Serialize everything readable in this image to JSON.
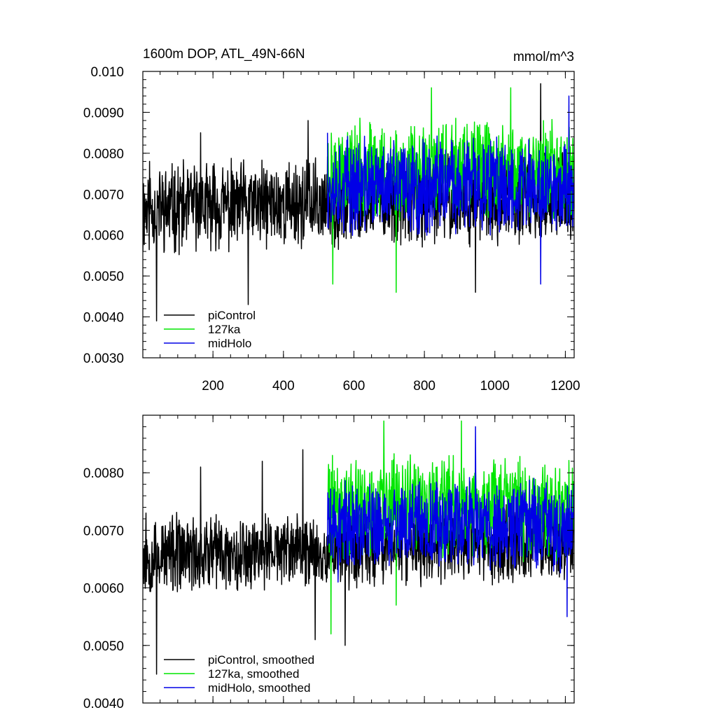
{
  "figure": {
    "title_left": "1600m DOP, ATL_49N-66N",
    "title_right": "mmol/m^3"
  },
  "colors": {
    "piControl": "#000000",
    "127ka": "#00e600",
    "midHolo": "#0000e6"
  },
  "chart_data": [
    {
      "type": "line",
      "title": "1600m DOP, ATL_49N-66N",
      "units": "mmol/m^3",
      "xlim": [
        1,
        1225
      ],
      "ylim": [
        0.003,
        0.01
      ],
      "x_ticks": [
        200,
        400,
        600,
        800,
        1000,
        1200
      ],
      "x_tick_labels": [
        "200",
        "400",
        "600",
        "800",
        "1000",
        "1200"
      ],
      "y_ticks": [
        0.003,
        0.004,
        0.005,
        0.006,
        0.007,
        0.008,
        0.009,
        0.01
      ],
      "y_tick_labels": [
        "0.0030",
        "0.0040",
        "0.0050",
        "0.0060",
        "0.0070",
        "0.0080",
        "0.0090",
        "0.010"
      ],
      "legend": {
        "position": "bottom-left",
        "entries": [
          "piControl",
          "127ka",
          "midHolo"
        ]
      },
      "series": [
        {
          "name": "piControl",
          "color_key": "piControl",
          "x_start": 1,
          "x_end": 1225,
          "mean": 0.0068,
          "amplitude": 0.0011,
          "trend": 0.0003,
          "seed": 11,
          "keypoints": [
            [
              1,
              0.0056
            ],
            [
              20,
              0.0078
            ],
            [
              40,
              0.0039
            ],
            [
              165,
              0.0085
            ],
            [
              300,
              0.0043
            ],
            [
              470,
              0.0088
            ],
            [
              945,
              0.0046
            ],
            [
              1130,
              0.0097
            ]
          ]
        },
        {
          "name": "127ka",
          "color_key": "127ka",
          "x_start": 525,
          "x_end": 1225,
          "mean": 0.0076,
          "amplitude": 0.0012,
          "trend": 0.0,
          "seed": 23,
          "keypoints": [
            [
              540,
              0.0048
            ],
            [
              720,
              0.0046
            ],
            [
              820,
              0.0096
            ],
            [
              1045,
              0.0096
            ]
          ]
        },
        {
          "name": "midHolo",
          "color_key": "midHolo",
          "x_start": 525,
          "x_end": 1225,
          "mean": 0.0072,
          "amplitude": 0.0012,
          "trend": 0.0,
          "seed": 37,
          "keypoints": [
            [
              525,
              0.0085
            ],
            [
              1130,
              0.0048
            ],
            [
              1210,
              0.0094
            ]
          ]
        }
      ]
    },
    {
      "type": "line",
      "title": "",
      "xlim": [
        1,
        1225
      ],
      "ylim": [
        0.004,
        0.009
      ],
      "x_ticks": [
        200,
        400,
        600,
        800,
        1000,
        1200
      ],
      "x_tick_labels": [
        "",
        "",
        "",
        "",
        "",
        ""
      ],
      "y_ticks": [
        0.004,
        0.005,
        0.006,
        0.007,
        0.008
      ],
      "y_tick_labels": [
        "0.0040",
        "0.0050",
        "0.0060",
        "0.0070",
        "0.0080"
      ],
      "legend": {
        "position": "bottom-left",
        "entries": [
          "piControl, smoothed",
          "127ka, smoothed",
          "midHolo, smoothed"
        ]
      },
      "series": [
        {
          "name": "piControl, smoothed",
          "color_key": "piControl",
          "x_start": 1,
          "x_end": 1225,
          "mean": 0.0067,
          "amplitude": 0.0007,
          "trend": 0.0003,
          "seed": 53,
          "keypoints": [
            [
              1,
              0.0064
            ],
            [
              10,
              0.0073
            ],
            [
              40,
              0.0045
            ],
            [
              165,
              0.0081
            ],
            [
              340,
              0.0082
            ],
            [
              455,
              0.0084
            ],
            [
              490,
              0.0051
            ],
            [
              575,
              0.005
            ]
          ]
        },
        {
          "name": "127ka, smoothed",
          "color_key": "127ka",
          "x_start": 525,
          "x_end": 1225,
          "mean": 0.0074,
          "amplitude": 0.0009,
          "trend": 0.0,
          "seed": 71,
          "keypoints": [
            [
              535,
              0.0052
            ],
            [
              685,
              0.0089
            ],
            [
              720,
              0.0057
            ],
            [
              905,
              0.0089
            ]
          ]
        },
        {
          "name": "midHolo, smoothed",
          "color_key": "midHolo",
          "x_start": 525,
          "x_end": 1225,
          "mean": 0.0071,
          "amplitude": 0.0008,
          "trend": 0.0,
          "seed": 89,
          "keypoints": [
            [
              555,
              0.0061
            ],
            [
              945,
              0.0088
            ],
            [
              1205,
              0.0055
            ]
          ]
        }
      ]
    }
  ]
}
